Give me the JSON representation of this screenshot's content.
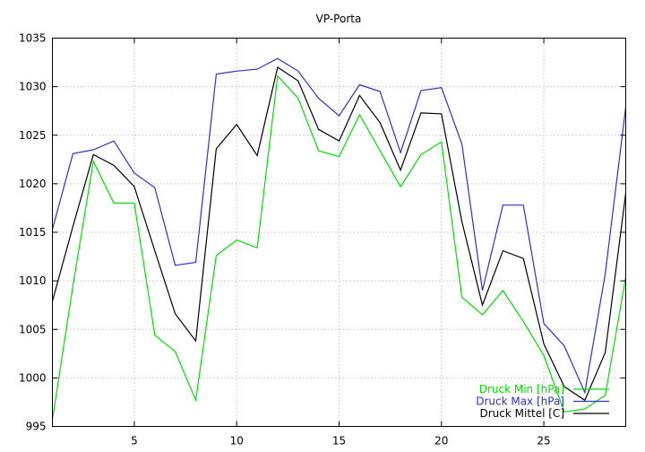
{
  "chart_data": {
    "type": "line",
    "title": "VP-Porta",
    "xlabel": "",
    "ylabel": "",
    "xlim": [
      1,
      29
    ],
    "ylim": [
      995,
      1035
    ],
    "xticks": [
      5,
      10,
      15,
      20,
      25
    ],
    "yticks": [
      995,
      1000,
      1005,
      1010,
      1015,
      1020,
      1025,
      1030,
      1035
    ],
    "grid": true,
    "legend_position": "bottom-right",
    "x": [
      1,
      2,
      3,
      4,
      5,
      6,
      7,
      8,
      9,
      10,
      11,
      12,
      13,
      14,
      15,
      16,
      17,
      18,
      19,
      20,
      21,
      22,
      23,
      24,
      25,
      26,
      27,
      28,
      29
    ],
    "series": [
      {
        "name": "Druck Min [hPa]",
        "color": "#00e000",
        "values": [
          995.7,
          1009.5,
          1022.3,
          1018.0,
          1018.0,
          1004.4,
          1002.7,
          997.7,
          1012.6,
          1014.2,
          1013.4,
          1031.1,
          1028.8,
          1023.4,
          1022.8,
          1027.1,
          1023.4,
          1019.7,
          1023.0,
          1024.3,
          1008.3,
          1006.5,
          1009.0,
          1005.8,
          1002.3,
          996.5,
          996.8,
          998.2,
          1010.4
        ]
      },
      {
        "name": "Druck Max [hPa]",
        "color": "#3030d0",
        "values": [
          1015.3,
          1023.1,
          1023.5,
          1024.4,
          1021.1,
          1019.6,
          1011.6,
          1011.9,
          1031.3,
          1031.6,
          1031.8,
          1032.9,
          1031.6,
          1028.8,
          1027.0,
          1030.2,
          1029.5,
          1023.2,
          1029.6,
          1029.9,
          1024.1,
          1009.0,
          1017.8,
          1017.8,
          1005.6,
          1003.3,
          998.5,
          1010.7,
          1027.9
        ]
      },
      {
        "name": "Druck Mittel [C]",
        "color": "#000000",
        "values": [
          1007.9,
          1015.6,
          1023.0,
          1021.9,
          1019.7,
          1013.1,
          1006.6,
          1003.8,
          1023.6,
          1026.1,
          1022.9,
          1032.0,
          1030.6,
          1025.6,
          1024.4,
          1029.1,
          1026.3,
          1021.4,
          1027.3,
          1027.2,
          1016.1,
          1007.5,
          1013.1,
          1012.3,
          1003.5,
          999.1,
          997.7,
          1002.6,
          1019.0
        ]
      }
    ]
  }
}
